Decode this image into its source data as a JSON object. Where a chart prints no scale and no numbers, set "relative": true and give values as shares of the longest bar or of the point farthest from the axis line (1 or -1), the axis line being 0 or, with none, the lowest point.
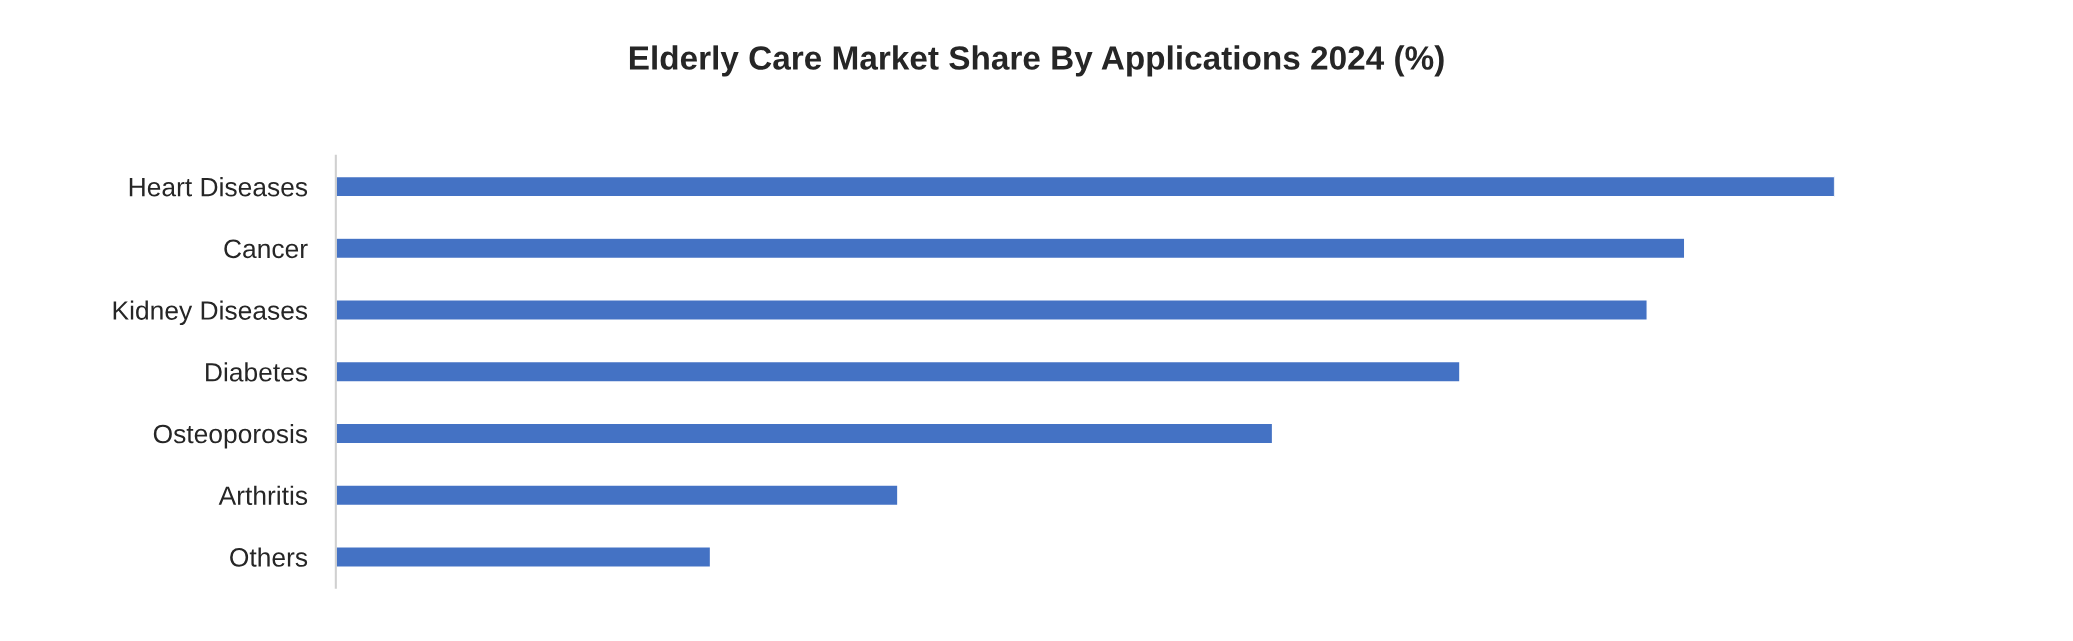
{
  "chart_data": {
    "type": "bar",
    "title": "Elderly Care Market Share By Applications 2024 (%)",
    "orientation": "horizontal",
    "relative": true,
    "color": "#4472c4",
    "categories": [
      "Heart Diseases",
      "Cancer",
      "Kidney Diseases",
      "Diabetes",
      "Osteoporosis",
      "Arthritis",
      "Others"
    ],
    "values": [
      1,
      0.9,
      0.875,
      0.75,
      0.625,
      0.375,
      0.25
    ]
  }
}
